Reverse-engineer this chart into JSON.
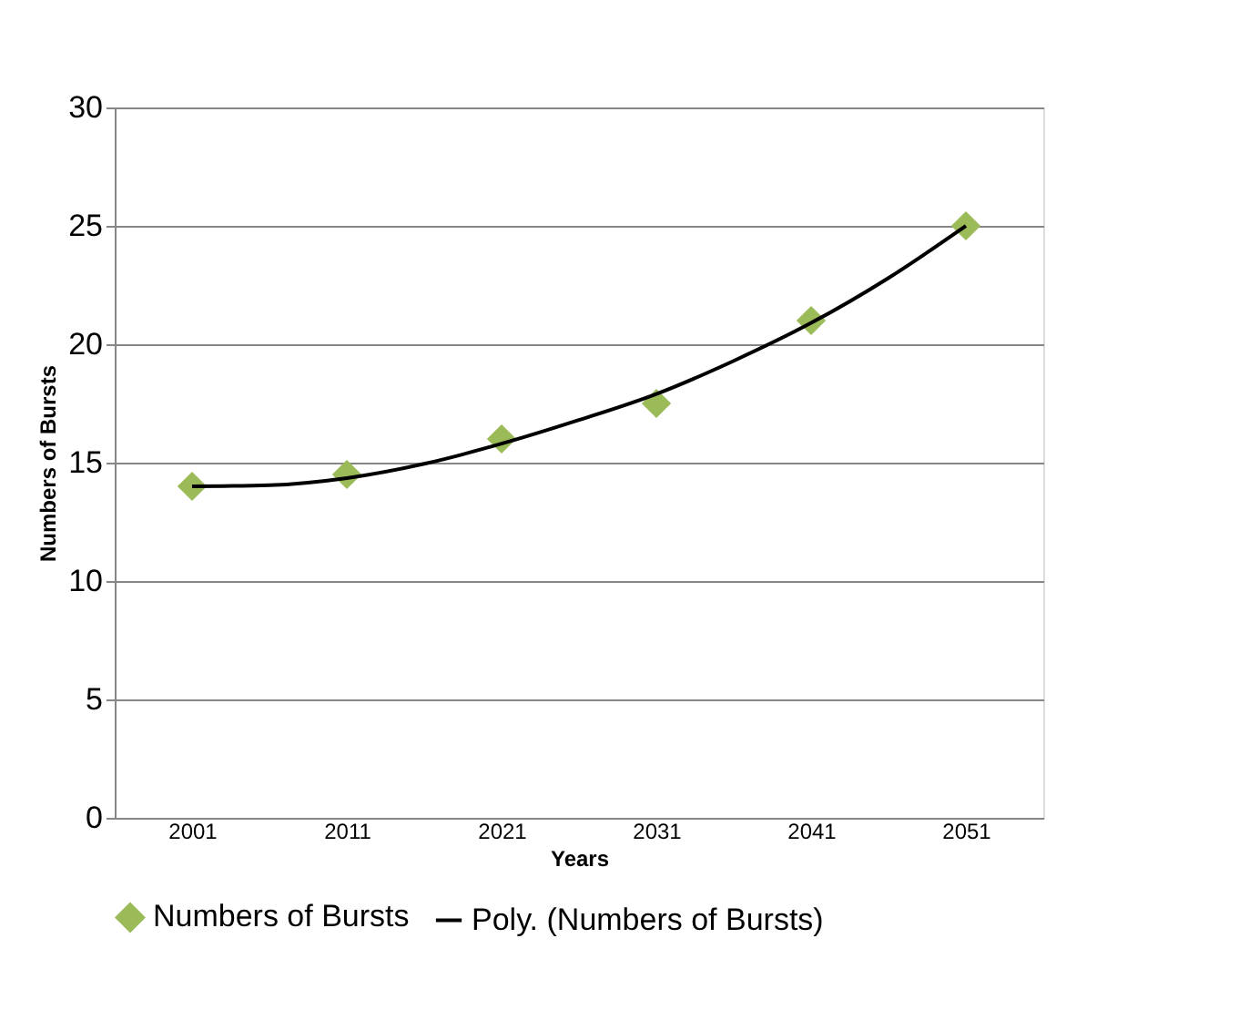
{
  "chart_data": {
    "type": "scatter",
    "xlabel": "Years",
    "ylabel": "Numbers  of Bursts",
    "x": [
      2001,
      2011,
      2021,
      2031,
      2041,
      2051
    ],
    "xlim": [
      1996,
      2056
    ],
    "xticks": [
      2001,
      2011,
      2021,
      2031,
      2041,
      2051
    ],
    "ylim": [
      0,
      30
    ],
    "yticks": [
      0,
      5,
      10,
      15,
      20,
      25,
      30
    ],
    "grid": "y",
    "legend": "bottom",
    "marker": "diamond",
    "series": [
      {
        "name": "Numbers of Bursts",
        "color": "#9bbb59",
        "values": [
          14,
          14.5,
          16,
          17.5,
          21,
          25
        ]
      },
      {
        "name": "Poly. (Numbers of Bursts)",
        "type": "line",
        "color": "#000000",
        "line_style": "solid",
        "marker": "none",
        "x": [
          2001,
          2006,
          2011,
          2016,
          2021,
          2026,
          2031,
          2036,
          2041,
          2046,
          2051
        ],
        "values": [
          14.0,
          14.05,
          14.35,
          14.95,
          15.8,
          16.8,
          17.9,
          19.3,
          20.9,
          22.8,
          25.0
        ]
      }
    ]
  }
}
